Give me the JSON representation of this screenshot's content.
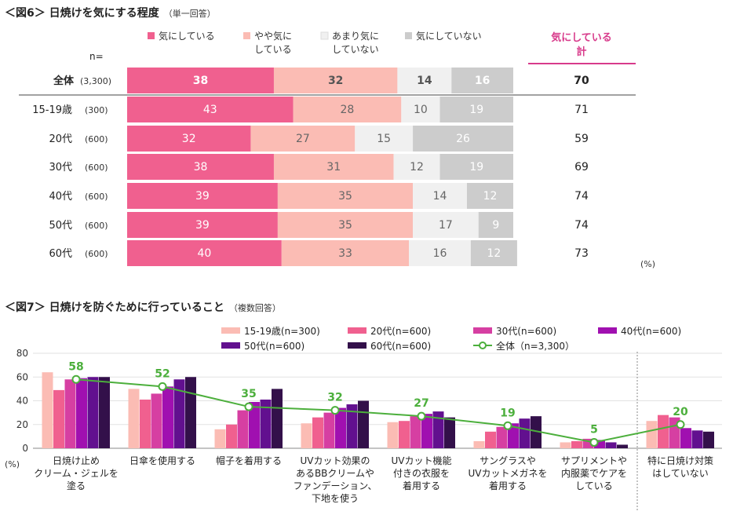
{
  "fig6": {
    "title": "＜図6＞ 日焼けを気にする程度",
    "subtitle": "（単一回答）",
    "n_label": "n=",
    "legend": [
      {
        "label": "気にしている",
        "color": "#f0608f"
      },
      {
        "label": "やや気に\nしている",
        "color": "#fbbcb4"
      },
      {
        "label": "あまり気に\nしていない",
        "color": "#f0f0f0"
      },
      {
        "label": "気にしていない",
        "color": "#cccccc"
      }
    ],
    "total_header": "気にしている\n計",
    "total_header_color": "#d83b8b",
    "percent_unit": "(%)"
  },
  "fig7": {
    "title": "＜図7＞ 日焼けを防ぐために行っていること",
    "subtitle": "（複数回答）",
    "y_unit": "(%)",
    "ylim": [
      0,
      80
    ],
    "yticks": [
      "0",
      "20",
      "40",
      "60",
      "80"
    ]
  },
  "chart_data": [
    {
      "type": "bar",
      "stacked": "horizontal-100",
      "categories": [
        "全体",
        "15-19歳",
        "20代",
        "30代",
        "40代",
        "50代",
        "60代"
      ],
      "n": [
        "(3,300)",
        "(300)",
        "(600)",
        "(600)",
        "(600)",
        "(600)",
        "(600)"
      ],
      "series": [
        {
          "name": "気にしている",
          "color": "#f0608f",
          "values": [
            38,
            43,
            32,
            38,
            39,
            39,
            40
          ]
        },
        {
          "name": "やや気に\nしている",
          "color": "#fbbcb4",
          "values": [
            32,
            28,
            27,
            31,
            35,
            35,
            33
          ]
        },
        {
          "name": "あまり気に\nしていない",
          "color": "#f0f0f0",
          "values": [
            14,
            10,
            15,
            12,
            14,
            17,
            16
          ]
        },
        {
          "name": "気にしていない",
          "color": "#cccccc",
          "values": [
            16,
            19,
            26,
            19,
            12,
            9,
            12
          ]
        }
      ],
      "totals": [
        70,
        71,
        59,
        69,
        74,
        74,
        73
      ]
    },
    {
      "type": "bar",
      "categories": [
        "日焼け止め\nクリーム・ジェルを\n塗る",
        "日傘を使用する",
        "帽子を着用する",
        "UVカット効果の\nあるBBクリームや\nファンデーション、\n下地を使う",
        "UVカット機能\n付きの衣服を\n着用する",
        "サングラスや\nUVカットメガネを\n着用する",
        "サプリメントや\n内服薬でケアを\nしている",
        "特に日焼け対策\nはしていない"
      ],
      "series": [
        {
          "name": "15-19歳(n=300)",
          "color": "#fbbcb4",
          "values": [
            64,
            50,
            16,
            21,
            22,
            6,
            5,
            23
          ]
        },
        {
          "name": "20代(n=600)",
          "color": "#f0608f",
          "values": [
            49,
            41,
            20,
            26,
            23,
            14,
            6,
            28
          ]
        },
        {
          "name": "30代(n=600)",
          "color": "#d63fa2",
          "values": [
            58,
            46,
            32,
            30,
            27,
            18,
            8,
            26
          ]
        },
        {
          "name": "40代(n=600)",
          "color": "#a010b0",
          "values": [
            59,
            52,
            39,
            34,
            29,
            21,
            7,
            17
          ]
        },
        {
          "name": "50代(n=600)",
          "color": "#62108f",
          "values": [
            60,
            58,
            41,
            37,
            31,
            25,
            5,
            15
          ]
        },
        {
          "name": "60代(n=600)",
          "color": "#33104a",
          "values": [
            60,
            60,
            50,
            40,
            26,
            27,
            3,
            14
          ]
        }
      ],
      "line": {
        "name": "全体（n=3,300）",
        "color": "#4caf3c",
        "values": [
          58,
          52,
          35,
          32,
          27,
          19,
          5,
          20
        ]
      },
      "ylim": [
        0,
        80
      ]
    }
  ]
}
